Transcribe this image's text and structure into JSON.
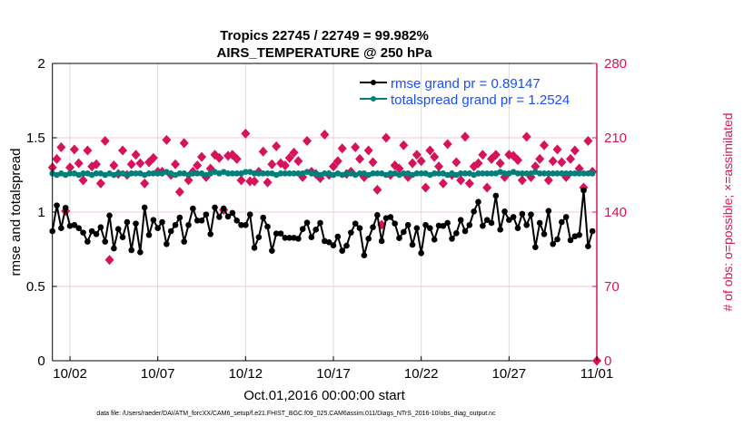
{
  "chart_data": {
    "type": "line",
    "title": [
      "Tropics 22745 / 22749 = 99.982%",
      "AIRS_TEMPERATURE @ 250 hPa"
    ],
    "xlabel": "Oct.01,2016 00:00:00 start",
    "ylabel": "rmse and totalspread",
    "ylabel_right": "# of obs: o=possible; ×=assimilated",
    "ylim": [
      0,
      2
    ],
    "ylim_right": [
      0,
      280
    ],
    "xlim_days": [
      0,
      31
    ],
    "x_step_days": 0.25,
    "yticks": [
      "0",
      "0.5",
      "1",
      "1.5",
      "2"
    ],
    "yticks_right": [
      "0",
      "70",
      "140",
      "210",
      "280"
    ],
    "xticks": [
      {
        "day": 1,
        "label": "10/02"
      },
      {
        "day": 6,
        "label": "10/07"
      },
      {
        "day": 11,
        "label": "10/12"
      },
      {
        "day": 16,
        "label": "10/17"
      },
      {
        "day": 21,
        "label": "10/22"
      },
      {
        "day": 26,
        "label": "10/27"
      },
      {
        "day": 31,
        "label": "11/01"
      }
    ],
    "grid": true,
    "legend_position": "top-right",
    "footer": "data file: /Users/raeder/DAI/ATM_forcXX/CAM6_setup/f.e21.FHIST_BGC.f09_025.CAM6assim.011/Diags_NTrS_2016-10/obs_diag_output.nc",
    "series": [
      {
        "name": "rmse grand pr = 0.89147",
        "color": "#000000",
        "axis": "left",
        "values": [
          0.872,
          1.045,
          0.892,
          1.029,
          0.907,
          0.913,
          0.892,
          0.862,
          0.801,
          0.872,
          0.852,
          0.898,
          0.801,
          0.977,
          0.756,
          0.886,
          0.831,
          0.933,
          0.744,
          0.923,
          0.73,
          1.031,
          0.846,
          0.947,
          0.892,
          0.933,
          0.785,
          0.872,
          0.913,
          0.963,
          0.801,
          0.913,
          1.024,
          0.943,
          0.943,
          0.984,
          0.852,
          1.031,
          0.967,
          1.024,
          0.97,
          0.994,
          0.943,
          0.913,
          0.913,
          0.984,
          0.76,
          0.831,
          0.963,
          0.902,
          0.74,
          0.856,
          0.856,
          0.827,
          0.827,
          0.827,
          0.821,
          0.886,
          0.929,
          0.831,
          0.882,
          0.927,
          0.805,
          0.797,
          0.776,
          0.835,
          0.74,
          0.774,
          0.862,
          0.923,
          0.892,
          0.709,
          0.821,
          0.898,
          0.98,
          0.805,
          0.959,
          0.967,
          0.923,
          0.825,
          0.866,
          0.913,
          0.78,
          0.892,
          0.724,
          0.913,
          0.892,
          0.815,
          0.909,
          0.907,
          0.927,
          0.821,
          0.858,
          0.947,
          0.872,
          0.913,
          1.004,
          1.069,
          0.907,
          0.947,
          0.927,
          1.11,
          0.882,
          1.004,
          0.947,
          0.967,
          0.892,
          0.988,
          0.913,
          0.984,
          0.764,
          0.927,
          0.852,
          1.008,
          0.785,
          0.817,
          0.933,
          0.967,
          0.811,
          0.837,
          0.846,
          1.146,
          0.77,
          0.872
        ]
      },
      {
        "name": "totalspread grand pr = 1.2524",
        "color": "#00807a",
        "axis": "left",
        "values": [
          1.26,
          1.25,
          1.26,
          1.25,
          1.26,
          1.26,
          1.25,
          1.26,
          1.26,
          1.25,
          1.26,
          1.26,
          1.25,
          1.26,
          1.25,
          1.26,
          1.26,
          1.25,
          1.26,
          1.26,
          1.26,
          1.25,
          1.26,
          1.26,
          1.26,
          1.26,
          1.27,
          1.26,
          1.25,
          1.26,
          1.26,
          1.25,
          1.26,
          1.26,
          1.26,
          1.25,
          1.26,
          1.27,
          1.26,
          1.27,
          1.26,
          1.26,
          1.26,
          1.26,
          1.27,
          1.27,
          1.26,
          1.26,
          1.26,
          1.26,
          1.26,
          1.25,
          1.26,
          1.26,
          1.26,
          1.26,
          1.26,
          1.26,
          1.27,
          1.26,
          1.26,
          1.25,
          1.26,
          1.26,
          1.25,
          1.26,
          1.25,
          1.26,
          1.26,
          1.25,
          1.26,
          1.26,
          1.25,
          1.26,
          1.26,
          1.26,
          1.25,
          1.26,
          1.26,
          1.25,
          1.26,
          1.26,
          1.25,
          1.26,
          1.26,
          1.26,
          1.25,
          1.26,
          1.26,
          1.26,
          1.25,
          1.26,
          1.25,
          1.26,
          1.26,
          1.26,
          1.25,
          1.26,
          1.26,
          1.26,
          1.26,
          1.26,
          1.27,
          1.26,
          1.26,
          1.27,
          1.26,
          1.26,
          1.26,
          1.26,
          1.27,
          1.26,
          1.26,
          1.26,
          1.26,
          1.26,
          1.26,
          1.26,
          1.26,
          1.26,
          1.26,
          1.26,
          1.26,
          1.26
        ]
      },
      {
        "name": "# of obs",
        "color": "#d6135a",
        "axis": "right",
        "marker": "diamond",
        "values": [
          182,
          190,
          201,
          141,
          182,
          199,
          186,
          170,
          198,
          183,
          185,
          167,
          207,
          95,
          184,
          176,
          198,
          175,
          185,
          194,
          186,
          167,
          187,
          191,
          178,
          178,
          208,
          175,
          185,
          159,
          205,
          170,
          178,
          184,
          192,
          173,
          181,
          194,
          191,
          142,
          193,
          194,
          190,
          170,
          214,
          169,
          169,
          178,
          197,
          168,
          185,
          202,
          186,
          184,
          191,
          196,
          188,
          173,
          207,
          178,
          176,
          172,
          213,
          175,
          183,
          188,
          200,
          176,
          178,
          201,
          190,
          173,
          198,
          187,
          161,
          128,
          210,
          175,
          184,
          181,
          203,
          173,
          186,
          194,
          188,
          163,
          198,
          192,
          183,
          167,
          204,
          175,
          187,
          170,
          211,
          167,
          183,
          186,
          194,
          163,
          190,
          194,
          186,
          173,
          194,
          193,
          189,
          170,
          211,
          173,
          183,
          190,
          203,
          170,
          188,
          199,
          187,
          173,
          190,
          198,
          181,
          163,
          207,
          178
        ],
        "extra_point": {
          "day": 31,
          "value": 0
        }
      }
    ]
  }
}
